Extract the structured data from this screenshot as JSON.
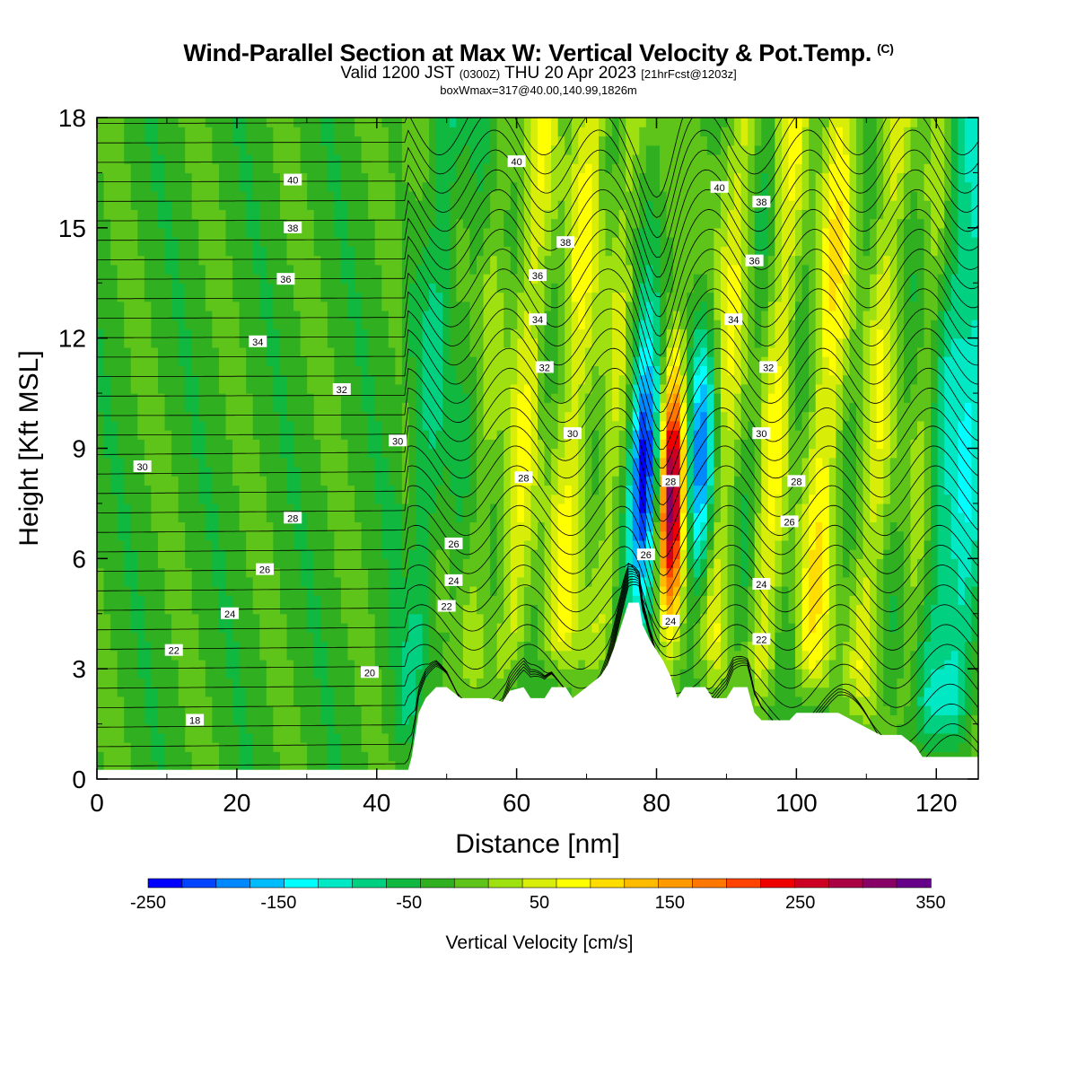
{
  "header": {
    "title": "Wind-Parallel Section at Max W: Vertical Velocity & Pot.Temp.",
    "copyright": "(C)",
    "valid_prefix": "Valid 1200 JST",
    "valid_utc": "(0300Z)",
    "valid_date": "THU 20 Apr 2023",
    "forecast_tag": "[21hrFcst@1203z]",
    "box_info": "boxWmax=317@40.00,140.99,1826m"
  },
  "chart_data": {
    "type": "heatmap",
    "xlabel": "Distance [nm]",
    "ylabel": "Height [Kft MSL]",
    "xlim": [
      0,
      126
    ],
    "ylim": [
      0,
      18
    ],
    "xticks": [
      0,
      20,
      40,
      60,
      80,
      100,
      120
    ],
    "yticks": [
      0,
      3,
      6,
      9,
      12,
      15,
      18
    ],
    "colorbar": {
      "label": "Vertical Velocity [cm/s]",
      "range": [
        -250,
        350
      ],
      "tick_values": [
        -250,
        -150,
        -50,
        50,
        150,
        250,
        350
      ],
      "colors": [
        "#0000ff",
        "#0044ff",
        "#0088ff",
        "#00bbff",
        "#00ffff",
        "#00e8c4",
        "#00d080",
        "#10b840",
        "#30b020",
        "#5ec41a",
        "#9ee010",
        "#d8ee08",
        "#ffff00",
        "#ffdd00",
        "#ffbb00",
        "#ff9900",
        "#ff7700",
        "#ff4400",
        "#ee0000",
        "#cc0022",
        "#aa0044",
        "#880066",
        "#660088"
      ]
    },
    "terrain_profile": [
      [
        0,
        0.25
      ],
      [
        44.5,
        0.25
      ],
      [
        45,
        0.6
      ],
      [
        45.5,
        1.2
      ],
      [
        46,
        1.8
      ],
      [
        47,
        2.2
      ],
      [
        48.5,
        2.5
      ],
      [
        50,
        2.5
      ],
      [
        52,
        2.2
      ],
      [
        56,
        2.2
      ],
      [
        58,
        2.1
      ],
      [
        59,
        2.4
      ],
      [
        61,
        2.5
      ],
      [
        62,
        2.2
      ],
      [
        64,
        2.2
      ],
      [
        65,
        2.5
      ],
      [
        67,
        2.5
      ],
      [
        68,
        2.2
      ],
      [
        70,
        2.5
      ],
      [
        72,
        2.8
      ],
      [
        73,
        3.1
      ],
      [
        74,
        3.6
      ],
      [
        75,
        4.2
      ],
      [
        76,
        4.8
      ],
      [
        77.5,
        4.8
      ],
      [
        78,
        4.2
      ],
      [
        79,
        3.8
      ],
      [
        80,
        3.5
      ],
      [
        81,
        3.2
      ],
      [
        82,
        2.8
      ],
      [
        83,
        2.2
      ],
      [
        84,
        2.5
      ],
      [
        87,
        2.5
      ],
      [
        88,
        2.2
      ],
      [
        90,
        2.2
      ],
      [
        91,
        2.5
      ],
      [
        93,
        2.5
      ],
      [
        94,
        1.8
      ],
      [
        95,
        1.6
      ],
      [
        99,
        1.6
      ],
      [
        100,
        1.8
      ],
      [
        106,
        1.8
      ],
      [
        108,
        1.6
      ],
      [
        110,
        1.4
      ],
      [
        112,
        1.2
      ],
      [
        115,
        1.2
      ],
      [
        117,
        0.9
      ],
      [
        118,
        0.6
      ],
      [
        126,
        0.6
      ]
    ],
    "velocity_features": [
      {
        "x": 47,
        "w": 3,
        "amp": -60
      },
      {
        "x": 49,
        "w": 2,
        "amp": 30
      },
      {
        "x": 52,
        "w": 2.5,
        "amp": -50
      },
      {
        "x": 54,
        "w": 3,
        "amp": 60
      },
      {
        "x": 57,
        "w": 2.5,
        "amp": -40
      },
      {
        "x": 60,
        "w": 3,
        "amp": 90
      },
      {
        "x": 63,
        "w": 2.5,
        "amp": -40
      },
      {
        "x": 67,
        "w": 3,
        "amp": 90
      },
      {
        "x": 70,
        "w": 2.5,
        "amp": -40
      },
      {
        "x": 72.5,
        "w": 2.5,
        "amp": 60
      },
      {
        "x": 75.5,
        "w": 2,
        "amp": -20
      },
      {
        "x": 78,
        "w": 2,
        "amp": -240
      },
      {
        "x": 82,
        "w": 1.8,
        "amp": 317
      },
      {
        "x": 86,
        "w": 2,
        "amp": -180
      },
      {
        "x": 89,
        "w": 2.5,
        "amp": 80
      },
      {
        "x": 92,
        "w": 2.5,
        "amp": -40
      },
      {
        "x": 96,
        "w": 2.5,
        "amp": 90
      },
      {
        "x": 99,
        "w": 2.5,
        "amp": -40
      },
      {
        "x": 103,
        "w": 3,
        "amp": 100
      },
      {
        "x": 107,
        "w": 2.5,
        "amp": -40
      },
      {
        "x": 110.5,
        "w": 3,
        "amp": 80
      },
      {
        "x": 114,
        "w": 2.5,
        "amp": -40
      },
      {
        "x": 117,
        "w": 2.5,
        "amp": 50
      },
      {
        "x": 120,
        "w": 2.5,
        "amp": -70
      },
      {
        "x": 124,
        "w": 2.5,
        "amp": -90
      }
    ],
    "theta_contour_labels": [
      {
        "value": "40",
        "x": 28,
        "y": 16.3
      },
      {
        "value": "38",
        "x": 28,
        "y": 15.0
      },
      {
        "value": "36",
        "x": 27,
        "y": 13.6
      },
      {
        "value": "34",
        "x": 23,
        "y": 11.9
      },
      {
        "value": "32",
        "x": 35,
        "y": 10.6
      },
      {
        "value": "30",
        "x": 43,
        "y": 9.2
      },
      {
        "value": "30",
        "x": 6.5,
        "y": 8.5
      },
      {
        "value": "28",
        "x": 28,
        "y": 7.1
      },
      {
        "value": "26",
        "x": 24,
        "y": 5.7
      },
      {
        "value": "24",
        "x": 19,
        "y": 4.5
      },
      {
        "value": "22",
        "x": 11,
        "y": 3.5
      },
      {
        "value": "20",
        "x": 39,
        "y": 2.9
      },
      {
        "value": "18",
        "x": 14,
        "y": 1.6
      },
      {
        "value": "40",
        "x": 60,
        "y": 16.8
      },
      {
        "value": "38",
        "x": 67,
        "y": 14.6
      },
      {
        "value": "36",
        "x": 63,
        "y": 13.7
      },
      {
        "value": "34",
        "x": 63,
        "y": 12.5
      },
      {
        "value": "32",
        "x": 64,
        "y": 11.2
      },
      {
        "value": "30",
        "x": 68,
        "y": 9.4
      },
      {
        "value": "28",
        "x": 61,
        "y": 8.2
      },
      {
        "value": "26",
        "x": 51,
        "y": 6.4
      },
      {
        "value": "24",
        "x": 51,
        "y": 5.4
      },
      {
        "value": "22",
        "x": 50,
        "y": 4.7
      },
      {
        "value": "26",
        "x": 78.5,
        "y": 6.1
      },
      {
        "value": "28",
        "x": 82,
        "y": 8.1
      },
      {
        "value": "24",
        "x": 82,
        "y": 4.3
      },
      {
        "value": "40",
        "x": 89,
        "y": 16.1
      },
      {
        "value": "38",
        "x": 95,
        "y": 15.7
      },
      {
        "value": "36",
        "x": 94,
        "y": 14.1
      },
      {
        "value": "34",
        "x": 91,
        "y": 12.5
      },
      {
        "value": "32",
        "x": 96,
        "y": 11.2
      },
      {
        "value": "30",
        "x": 95,
        "y": 9.4
      },
      {
        "value": "28",
        "x": 100,
        "y": 8.1
      },
      {
        "value": "26",
        "x": 99,
        "y": 7.0
      },
      {
        "value": "24",
        "x": 95,
        "y": 5.3
      },
      {
        "value": "22",
        "x": 95,
        "y": 3.8
      }
    ]
  }
}
